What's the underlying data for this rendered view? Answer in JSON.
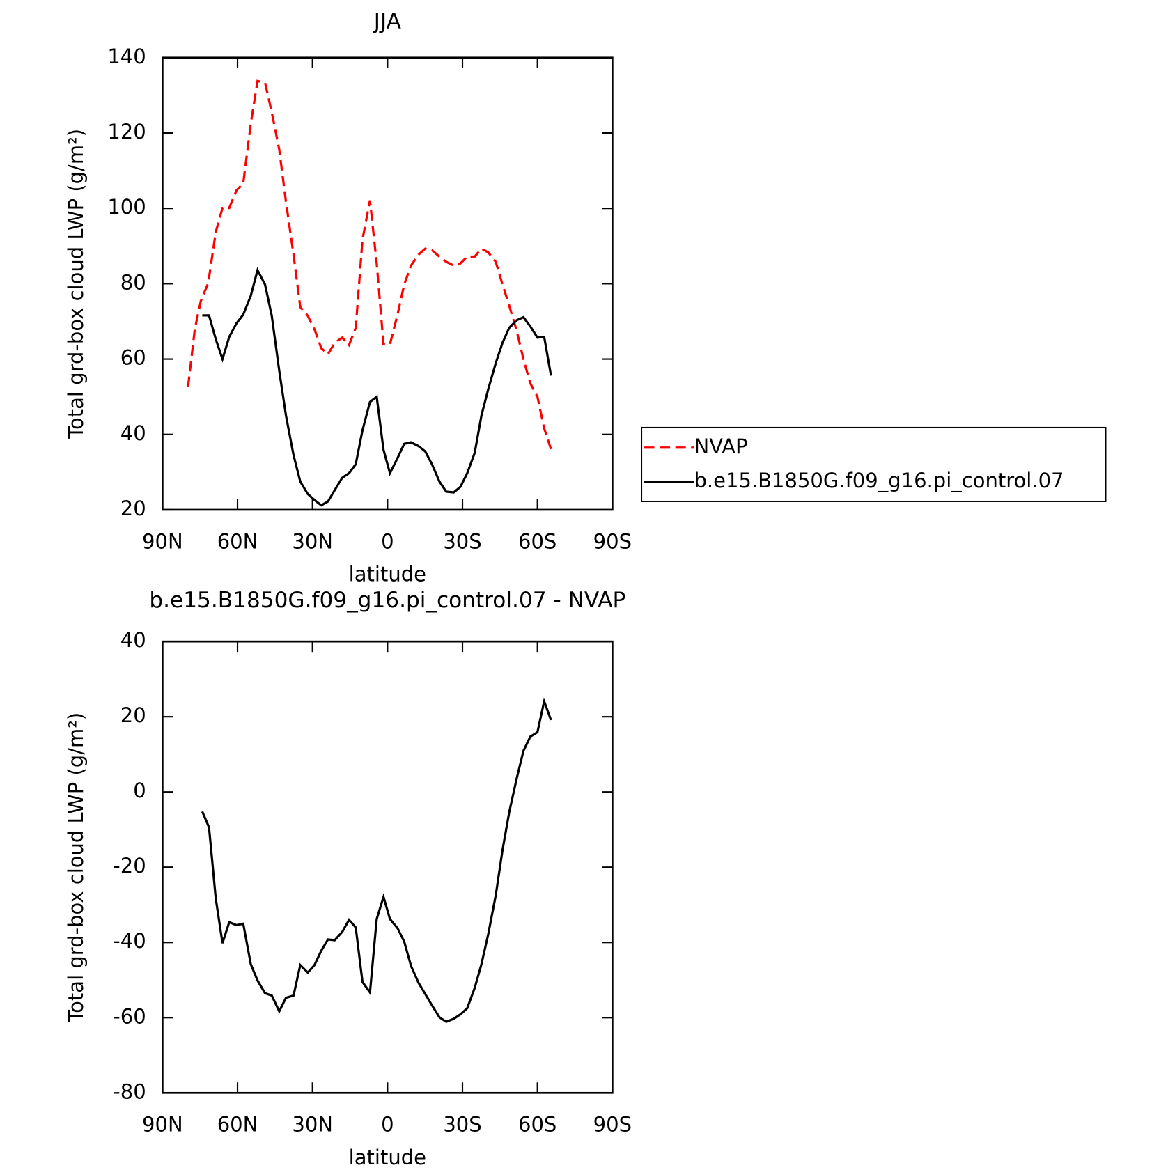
{
  "chart_data": [
    {
      "type": "line",
      "title": "JJA",
      "xlabel": "latitude",
      "ylabel": "Total grd-box cloud LWP (g/m²)",
      "xlim": [
        90,
        -90
      ],
      "xticks": [
        {
          "value": 90,
          "label": "90N"
        },
        {
          "value": 60,
          "label": "60N"
        },
        {
          "value": 30,
          "label": "30N"
        },
        0,
        {
          "value": -30,
          "label": "30S"
        },
        {
          "value": -60,
          "label": "60S"
        },
        {
          "value": -90,
          "label": "90S"
        }
      ],
      "ylim": [
        20,
        140
      ],
      "yticks": [
        20,
        40,
        60,
        80,
        100,
        120,
        140
      ],
      "legend": "right",
      "series": [
        {
          "name": "NVAP",
          "color": "#ff0000",
          "dash": true,
          "x": [
            79.8,
            77.1,
            74.7,
            71.7,
            68.7,
            66.0,
            63.3,
            60.4,
            57.7,
            54.7,
            52.0,
            49.0,
            46.3,
            43.3,
            40.6,
            37.6,
            34.9,
            31.9,
            29.2,
            26.5,
            23.8,
            21.1,
            18.1,
            15.4,
            12.7,
            10.0,
            7.0,
            4.3,
            1.6,
            -1.0,
            -4.0,
            -6.7,
            -9.4,
            -12.4,
            -15.1,
            -17.8,
            -20.8,
            -23.5,
            -26.5,
            -29.2,
            -31.9,
            -34.9,
            -37.6,
            -40.3,
            -43.3,
            -46.0,
            -48.7,
            -51.7,
            -54.4,
            -57.1,
            -60.0,
            -62.7,
            -65.4
          ],
          "values": [
            52.6,
            67.9,
            75.4,
            80.2,
            93.7,
            100.1,
            100.1,
            104.8,
            106.6,
            122.5,
            133.8,
            133.4,
            125.5,
            115.6,
            101.7,
            87.7,
            73.8,
            71.5,
            67.9,
            62.9,
            61.3,
            64.3,
            65.7,
            63.7,
            68.3,
            91.7,
            102.1,
            85.4,
            63.9,
            63.9,
            71.8,
            79.8,
            84.8,
            87.7,
            89.3,
            88.9,
            87.2,
            85.8,
            84.8,
            85.4,
            87.2,
            87.2,
            89.3,
            88.3,
            85.8,
            79.8,
            74.2,
            67.5,
            60.0,
            53.6,
            50.0,
            41.6,
            36.1
          ]
        },
        {
          "name": "b.e15.B1850G.f09_g16.pi_control.07",
          "color": "#000000",
          "dash": false,
          "x": [
            74.1,
            71.4,
            68.7,
            66.0,
            63.3,
            60.4,
            57.7,
            54.7,
            52.0,
            49.0,
            46.3,
            43.3,
            40.6,
            37.6,
            34.9,
            31.9,
            29.2,
            26.5,
            23.8,
            21.1,
            18.1,
            15.4,
            12.7,
            10.0,
            7.0,
            4.3,
            1.6,
            -1.0,
            -4.0,
            -6.7,
            -9.4,
            -12.4,
            -15.1,
            -17.8,
            -20.8,
            -23.5,
            -26.5,
            -29.2,
            -31.9,
            -34.9,
            -37.6,
            -40.3,
            -43.3,
            -46.0,
            -48.7,
            -51.7,
            -54.4,
            -57.1,
            -60.0,
            -62.7,
            -65.4
          ],
          "values": [
            71.6,
            71.6,
            65.3,
            60.0,
            65.9,
            69.5,
            71.8,
            76.8,
            83.6,
            79.8,
            71.5,
            56.9,
            45.0,
            34.5,
            27.5,
            24.2,
            22.6,
            21.2,
            22.2,
            25.2,
            28.5,
            29.7,
            32.1,
            41.1,
            48.6,
            50.0,
            35.9,
            29.7,
            33.7,
            37.5,
            37.9,
            36.9,
            35.5,
            32.1,
            27.5,
            24.8,
            24.6,
            26.1,
            29.7,
            35.1,
            45.0,
            52.0,
            58.9,
            64.3,
            68.3,
            70.3,
            71.1,
            68.7,
            65.7,
            65.9,
            55.6
          ]
        }
      ]
    },
    {
      "type": "line",
      "title": "b.e15.B1850G.f09_g16.pi_control.07 - NVAP",
      "xlabel": "latitude",
      "ylabel": "Total grd-box cloud LWP (g/m²)",
      "xlim": [
        90,
        -90
      ],
      "xticks": [
        {
          "value": 90,
          "label": "90N"
        },
        {
          "value": 60,
          "label": "60N"
        },
        {
          "value": 30,
          "label": "30N"
        },
        0,
        {
          "value": -30,
          "label": "30S"
        },
        {
          "value": -60,
          "label": "60S"
        },
        {
          "value": -90,
          "label": "90S"
        }
      ],
      "ylim": [
        -80,
        40
      ],
      "yticks": [
        -80,
        -60,
        -40,
        -20,
        0,
        20,
        40
      ],
      "series": [
        {
          "color": "#000000",
          "dash": false,
          "x": [
            74.1,
            71.4,
            68.7,
            66.0,
            63.3,
            60.4,
            57.7,
            54.7,
            52.0,
            49.0,
            46.3,
            43.3,
            40.6,
            37.6,
            34.9,
            31.9,
            29.2,
            26.5,
            23.8,
            21.1,
            18.1,
            15.4,
            12.7,
            10.0,
            7.0,
            4.3,
            1.6,
            -1.0,
            -4.0,
            -6.7,
            -9.4,
            -12.4,
            -15.1,
            -17.8,
            -20.8,
            -23.5,
            -26.5,
            -29.2,
            -31.9,
            -34.9,
            -37.6,
            -40.3,
            -43.3,
            -46.0,
            -48.7,
            -51.7,
            -54.4,
            -57.1,
            -60.0,
            -62.7,
            -65.4
          ],
          "values": [
            -5.2,
            -9.4,
            -28.3,
            -40.2,
            -34.6,
            -35.4,
            -35.0,
            -45.8,
            -50.1,
            -53.5,
            -54.1,
            -58.3,
            -54.7,
            -54.1,
            -46.0,
            -48.0,
            -46.0,
            -42.2,
            -39.2,
            -39.4,
            -37.2,
            -34.0,
            -36.0,
            -50.5,
            -53.3,
            -33.8,
            -27.9,
            -33.8,
            -36.2,
            -39.8,
            -46.2,
            -50.7,
            -53.7,
            -56.7,
            -59.9,
            -61.1,
            -60.3,
            -59.1,
            -57.5,
            -52.1,
            -45.8,
            -37.8,
            -27.5,
            -15.5,
            -5.4,
            3.6,
            10.9,
            14.7,
            15.9,
            24.1,
            19.1
          ]
        }
      ]
    }
  ]
}
